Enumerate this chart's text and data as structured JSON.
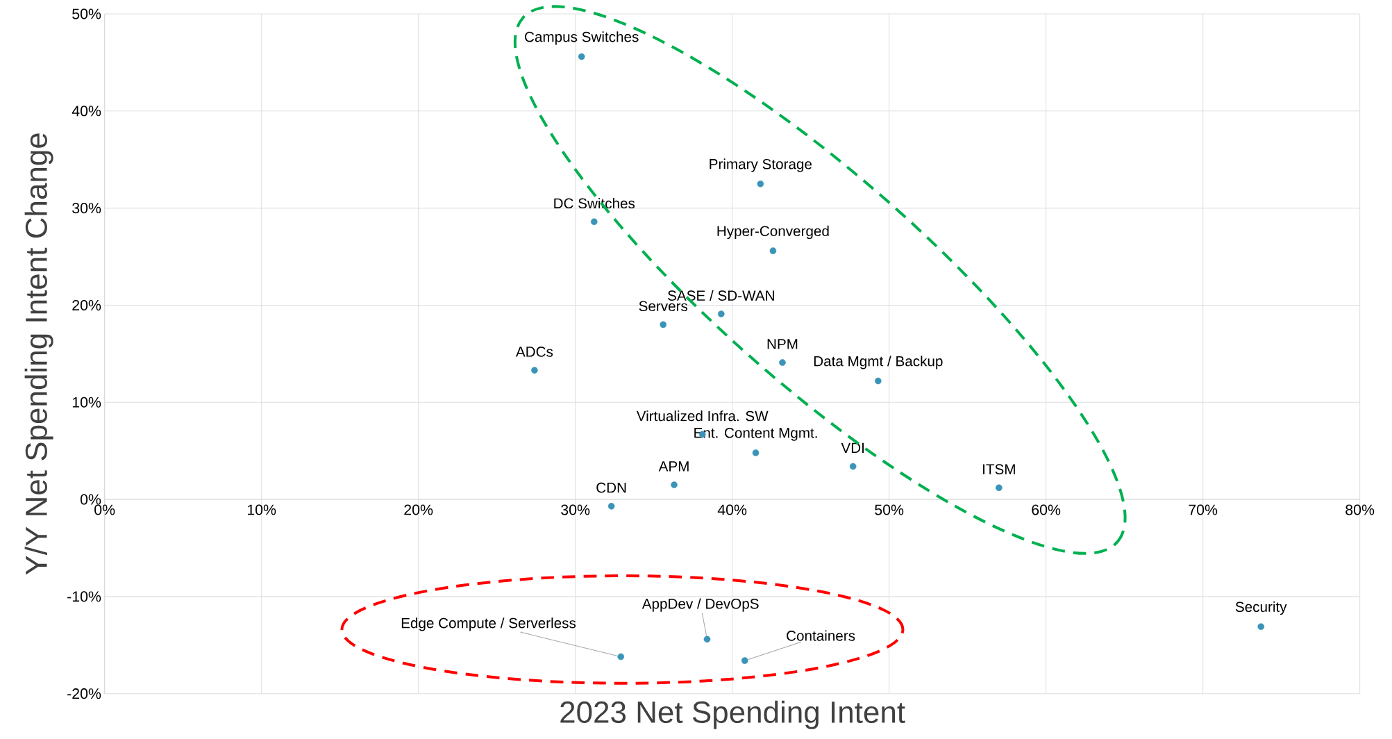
{
  "chart_data": {
    "type": "scatter",
    "xlabel": "2023 Net Spending Intent",
    "ylabel": "Y/Y Net Spending Intent Change",
    "color": "#3a94b8",
    "grid": true,
    "x": [
      30.4,
      41.8,
      31.2,
      42.6,
      39.3,
      35.6,
      27.4,
      43.2,
      49.3,
      38.1,
      41.5,
      47.7,
      36.3,
      32.3,
      57.0,
      73.7,
      32.9,
      38.4,
      40.8
    ],
    "values": [
      45.6,
      32.5,
      28.6,
      25.6,
      19.1,
      18.0,
      13.3,
      14.1,
      12.2,
      6.7,
      4.8,
      3.4,
      1.5,
      -0.7,
      1.2,
      -13.1,
      -16.2,
      -14.4,
      -16.6
    ],
    "xlim": [
      0,
      80
    ],
    "ylim": [
      -20,
      50
    ],
    "xticks": [
      {
        "value": 0,
        "label": "0%"
      },
      {
        "value": 10,
        "label": "10%"
      },
      {
        "value": 20,
        "label": "20%"
      },
      {
        "value": 30,
        "label": "30%"
      },
      {
        "value": 40,
        "label": "40%"
      },
      {
        "value": 50,
        "label": "50%"
      },
      {
        "value": 60,
        "label": "60%"
      },
      {
        "value": 70,
        "label": "70%"
      },
      {
        "value": 80,
        "label": "80%"
      }
    ],
    "yticks": [
      {
        "value": -20,
        "label": "-20%"
      },
      {
        "value": -10,
        "label": "-10%"
      },
      {
        "value": 0,
        "label": "0%"
      },
      {
        "value": 10,
        "label": "10%"
      },
      {
        "value": 20,
        "label": "20%"
      },
      {
        "value": 30,
        "label": "30%"
      },
      {
        "value": 40,
        "label": "40%"
      },
      {
        "value": 50,
        "label": "50%"
      }
    ],
    "annotations": [
      {
        "text": "Campus Switches",
        "x": 30.4,
        "y": 45.6
      },
      {
        "text": "Primary Storage",
        "x": 41.8,
        "y": 32.5
      },
      {
        "text": "DC Switches",
        "x": 31.2,
        "y": 28.6
      },
      {
        "text": "Hyper-Converged",
        "x": 42.6,
        "y": 25.6
      },
      {
        "text": "SASE / SD-WAN",
        "x": 39.3,
        "y": 19.1
      },
      {
        "text": "Servers",
        "x": 35.6,
        "y": 18.0
      },
      {
        "text": "ADCs",
        "x": 27.4,
        "y": 13.3
      },
      {
        "text": "NPM",
        "x": 43.2,
        "y": 14.1
      },
      {
        "text": "Data Mgmt / Backup",
        "x": 49.3,
        "y": 12.2
      },
      {
        "text": "Virtualized Infra. SW",
        "x": 38.1,
        "y": 6.7
      },
      {
        "text": "Ent. Content Mgmt.",
        "x": 41.5,
        "y": 4.8
      },
      {
        "text": "VDI",
        "x": 47.7,
        "y": 3.4
      },
      {
        "text": "APM",
        "x": 36.3,
        "y": 1.5
      },
      {
        "text": "CDN",
        "x": 32.3,
        "y": -0.7
      },
      {
        "text": "ITSM",
        "x": 57.0,
        "y": 1.2
      },
      {
        "text": "Security",
        "x": 73.7,
        "y": -13.1
      },
      {
        "text": "Edge Compute / Serverless",
        "x": 32.9,
        "y": -16.2
      },
      {
        "text": "AppDev / DevOpS",
        "x": 38.4,
        "y": -14.4
      },
      {
        "text": "Containers",
        "x": 40.8,
        "y": -16.6
      }
    ]
  }
}
